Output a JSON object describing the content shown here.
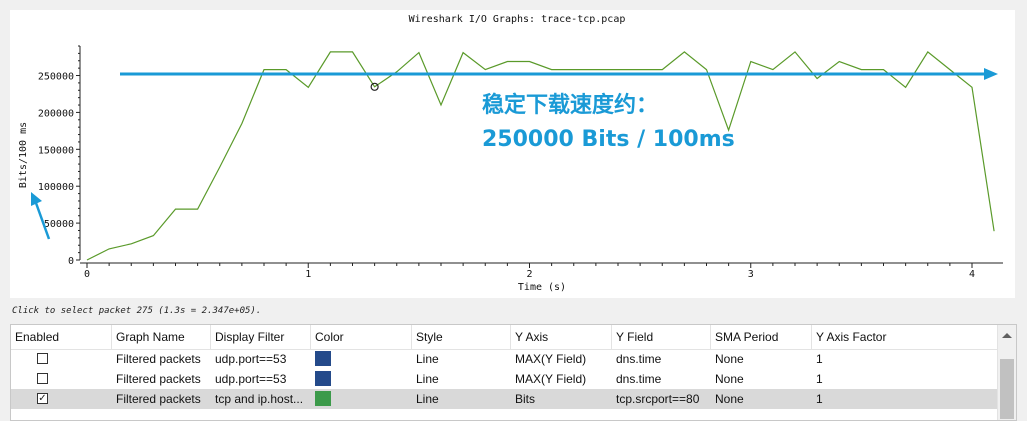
{
  "window": {
    "title": "Wireshark I/O Graphs: trace-tcp.pcap"
  },
  "annotation": {
    "line1": "稳定下载速度约：",
    "line2": "250000 Bits / 100ms",
    "color": "#1a9ad6"
  },
  "status_hint": "Click to select packet 275 (1.3s = 2.347e+05).",
  "chart_data": {
    "type": "line",
    "title": "Wireshark I/O Graphs: trace-tcp.pcap",
    "xlabel": "Time (s)",
    "ylabel": "Bits/100 ms",
    "xlim": [
      0,
      4.13
    ],
    "ylim": [
      0,
      290000
    ],
    "x_ticks": [
      0,
      1,
      2,
      3,
      4
    ],
    "x_tick_labels": [
      "0",
      "1",
      "2",
      "3",
      "4"
    ],
    "y_ticks": [
      0,
      50000,
      100000,
      150000,
      200000,
      250000
    ],
    "y_tick_labels": [
      "0",
      "50000",
      "100000",
      "150000",
      "200000",
      "250000"
    ],
    "grid": false,
    "series": [
      {
        "color": "#5a9a2a",
        "x": [
          0,
          0.1,
          0.2,
          0.3,
          0.4,
          0.5,
          0.6,
          0.7,
          0.8,
          0.9,
          1.0,
          1.1,
          1.2,
          1.3,
          1.4,
          1.5,
          1.6,
          1.7,
          1.8,
          1.9,
          2.0,
          2.1,
          2.2,
          2.3,
          2.4,
          2.5,
          2.6,
          2.7,
          2.8,
          2.9,
          3.0,
          3.1,
          3.2,
          3.3,
          3.4,
          3.5,
          3.6,
          3.7,
          3.8,
          3.9,
          4.0,
          4.1
        ],
        "y": [
          0,
          15000,
          22000,
          33000,
          69000,
          69000,
          126000,
          185000,
          258000,
          258000,
          234000,
          282000,
          282000,
          234700,
          255000,
          281000,
          210000,
          281000,
          258000,
          269000,
          269000,
          258000,
          258000,
          258000,
          258000,
          258000,
          258000,
          282000,
          258000,
          176000,
          269000,
          258000,
          282000,
          246000,
          269000,
          258000,
          258000,
          234000,
          282000,
          258000,
          234000,
          39000
        ]
      }
    ],
    "highlight_point": {
      "x": 1.3,
      "y": 234700
    }
  },
  "table": {
    "columns": [
      "Enabled",
      "Graph Name",
      "Display Filter",
      "Color",
      "Style",
      "Y Axis",
      "Y Field",
      "SMA Period",
      "Y Axis Factor"
    ],
    "rows": [
      {
        "enabled": false,
        "checkmark": "",
        "graph_name": "Filtered packets",
        "display_filter": "udp.port==53",
        "color": "#244a8a",
        "style": "Line",
        "y_axis": "MAX(Y Field)",
        "y_field": "dns.time",
        "sma_period": "None",
        "y_axis_factor": "1"
      },
      {
        "enabled": false,
        "checkmark": "",
        "graph_name": "Filtered packets",
        "display_filter": "udp.port==53",
        "color": "#244a8a",
        "style": "Line",
        "y_axis": "MAX(Y Field)",
        "y_field": "dns.time",
        "sma_period": "None",
        "y_axis_factor": "1"
      },
      {
        "enabled": true,
        "checkmark": "✓",
        "graph_name": "Filtered packets",
        "display_filter": "tcp and ip.host...",
        "color": "#3c9a4a",
        "style": "Line",
        "y_axis": "Bits",
        "y_field": "tcp.srcport==80",
        "sma_period": "None",
        "y_axis_factor": "1"
      }
    ]
  }
}
